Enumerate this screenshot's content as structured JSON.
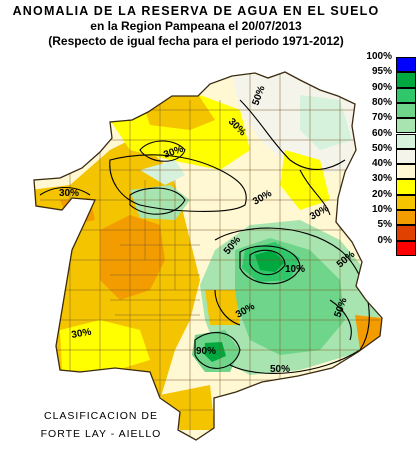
{
  "header": {
    "line1": "ANOMALIA DE LA RESERVA DE AGUA EN EL SUELO",
    "line2": "en la Region Pampeana el   20/07/2013",
    "line3": "(Respecto de igual fecha para el periodo 1971-2012)"
  },
  "legend": {
    "items": [
      {
        "label": "100%",
        "color": "#0000ff"
      },
      {
        "label": "95%",
        "color": "#00a840"
      },
      {
        "label": "90%",
        "color": "#2fc76a"
      },
      {
        "label": "80%",
        "color": "#6fd58a"
      },
      {
        "label": "70%",
        "color": "#a8e4b0"
      },
      {
        "label": "60%",
        "color": "#d6f2dc"
      },
      {
        "label": "50%",
        "color": "#f4f4ea"
      },
      {
        "label": "40%",
        "color": "#fff8d2"
      },
      {
        "label": "30%",
        "color": "#ffff00"
      },
      {
        "label": "20%",
        "color": "#f4c400"
      },
      {
        "label": "10%",
        "color": "#f39c00"
      },
      {
        "label": "5%",
        "color": "#e04000"
      },
      {
        "label": "0%",
        "color": "#ff0000"
      }
    ]
  },
  "map": {
    "contour_labels": [
      "50%",
      "30%",
      "30%",
      "30%",
      "30%",
      "30%",
      "50%",
      "10%",
      "50%",
      "30%",
      "30%",
      "50%",
      "50%",
      "90%"
    ]
  },
  "credit": {
    "line1": "CLASIFICACION DE",
    "line2": "FORTE LAY - AIELLO"
  }
}
